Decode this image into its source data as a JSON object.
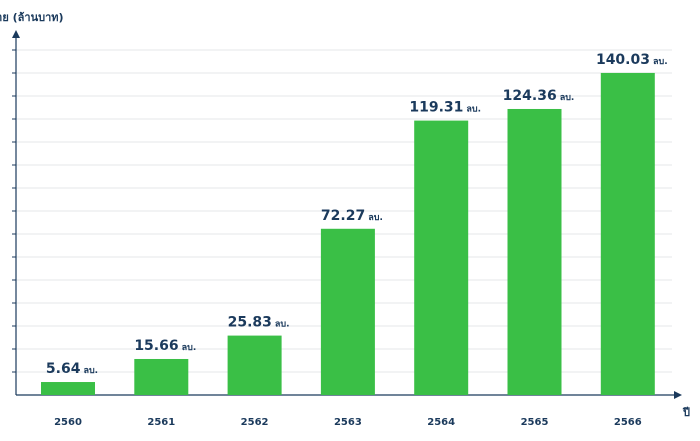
{
  "chart_data": {
    "type": "bar",
    "ylabel": "ยอดขาย (ล้านบาท)",
    "xlabel": "ปี",
    "categories": [
      "2560",
      "2561",
      "2562",
      "2563",
      "2564",
      "2565",
      "2566"
    ],
    "values": [
      5.64,
      15.66,
      25.83,
      72.27,
      119.31,
      124.36,
      140.03
    ],
    "value_labels": [
      "5.64",
      "15.66",
      "25.83",
      "72.27",
      "119.31",
      "124.36",
      "140.03"
    ],
    "unit_suffix": "ลบ.",
    "ylim": [
      0,
      150
    ],
    "grid": true,
    "bar_color": "#3abf46",
    "text_color": "#1b3a5c",
    "axis_color": "#1b3a5c",
    "grid_color": "#e4e7ea"
  }
}
